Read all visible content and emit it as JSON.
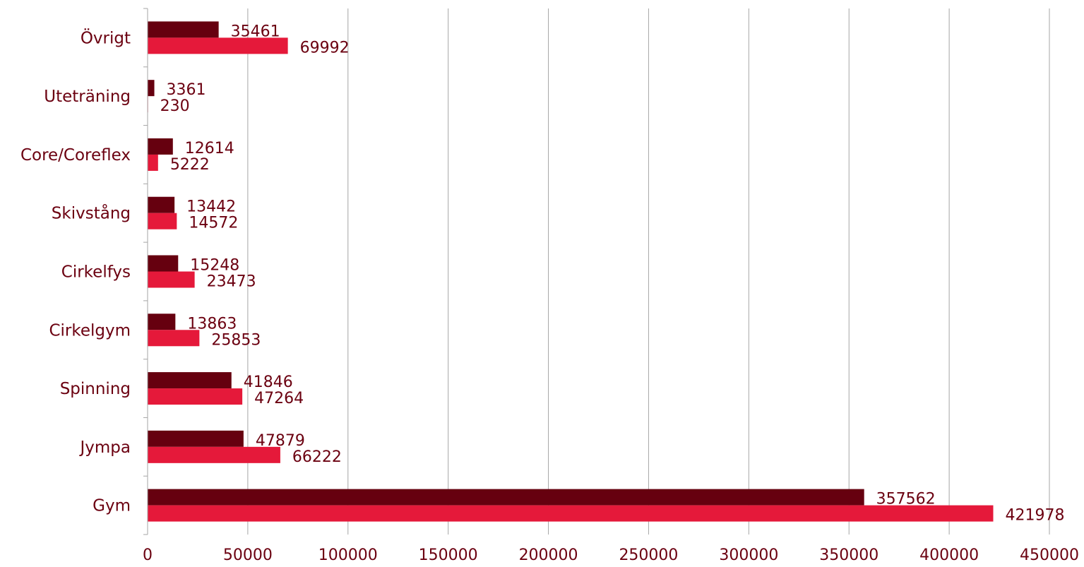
{
  "chart_data": {
    "type": "bar",
    "orientation": "horizontal",
    "categories": [
      "Övrigt",
      "Uteträning",
      "Core/Coreflex",
      "Skivstång",
      "Cirkelfys",
      "Cirkelgym",
      "Spinning",
      "Jympa",
      "Gym"
    ],
    "series": [
      {
        "color": "#66000f",
        "values": [
          35461,
          3361,
          12614,
          13442,
          15248,
          13863,
          41846,
          47879,
          357562
        ]
      },
      {
        "color": "#e5193a",
        "values": [
          69992,
          230,
          5222,
          14572,
          23473,
          25853,
          47264,
          66222,
          421978
        ]
      }
    ],
    "xlim": [
      0,
      450000
    ],
    "xticks": [
      0,
      50000,
      100000,
      150000,
      200000,
      250000,
      300000,
      350000,
      400000,
      450000
    ],
    "xtick_labels": [
      "0",
      "50000",
      "100000",
      "150000",
      "200000",
      "250000",
      "300000",
      "350000",
      "400000",
      "450000"
    ],
    "grid": true,
    "legend": "none",
    "title": "",
    "xlabel": "",
    "ylabel": "",
    "text_color": "#6b0010"
  }
}
